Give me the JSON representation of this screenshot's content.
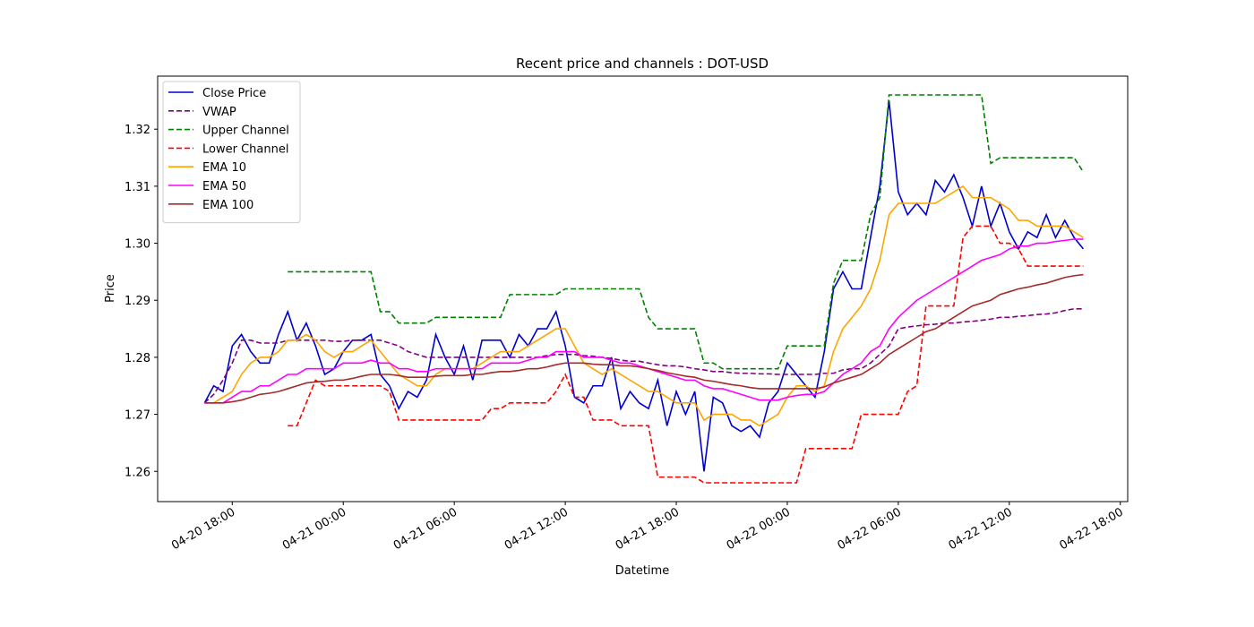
{
  "chart_data": {
    "type": "line",
    "title": "Recent price and channels : DOT-USD",
    "xlabel": "Datetime",
    "ylabel": "Price",
    "legend": "upper left",
    "grid": false,
    "x": [
      "04-20 16:30",
      "04-20 17:00",
      "04-20 17:30",
      "04-20 18:00",
      "04-20 18:30",
      "04-20 19:00",
      "04-20 19:30",
      "04-20 20:00",
      "04-20 20:30",
      "04-20 21:00",
      "04-20 21:30",
      "04-20 22:00",
      "04-20 22:30",
      "04-20 23:00",
      "04-20 23:30",
      "04-21 00:00",
      "04-21 00:30",
      "04-21 01:00",
      "04-21 01:30",
      "04-21 02:00",
      "04-21 02:30",
      "04-21 03:00",
      "04-21 03:30",
      "04-21 04:00",
      "04-21 04:30",
      "04-21 05:00",
      "04-21 05:30",
      "04-21 06:00",
      "04-21 06:30",
      "04-21 07:00",
      "04-21 07:30",
      "04-21 08:00",
      "04-21 08:30",
      "04-21 09:00",
      "04-21 09:30",
      "04-21 10:00",
      "04-21 10:30",
      "04-21 11:00",
      "04-21 11:30",
      "04-21 12:00",
      "04-21 12:30",
      "04-21 13:00",
      "04-21 13:30",
      "04-21 14:00",
      "04-21 14:30",
      "04-21 15:00",
      "04-21 15:30",
      "04-21 16:00",
      "04-21 16:30",
      "04-21 17:00",
      "04-21 17:30",
      "04-21 18:00",
      "04-21 18:30",
      "04-21 19:00",
      "04-21 19:30",
      "04-21 20:00",
      "04-21 20:30",
      "04-21 21:00",
      "04-21 21:30",
      "04-21 22:00",
      "04-21 22:30",
      "04-21 23:00",
      "04-21 23:30",
      "04-22 00:00",
      "04-22 00:30",
      "04-22 01:00",
      "04-22 01:30",
      "04-22 02:00",
      "04-22 02:30",
      "04-22 03:00",
      "04-22 03:30",
      "04-22 04:00",
      "04-22 04:30",
      "04-22 05:00",
      "04-22 05:30",
      "04-22 06:00",
      "04-22 06:30",
      "04-22 07:00",
      "04-22 07:30",
      "04-22 08:00",
      "04-22 08:30",
      "04-22 09:00",
      "04-22 09:30",
      "04-22 10:00",
      "04-22 10:30",
      "04-22 11:00",
      "04-22 11:30",
      "04-22 12:00",
      "04-22 12:30",
      "04-22 13:00",
      "04-22 13:30",
      "04-22 14:00",
      "04-22 14:30",
      "04-22 15:00",
      "04-22 15:30",
      "04-22 16:00"
    ],
    "xlim": [
      "04-20 13:58",
      "04-22 18:24"
    ],
    "xticks": [
      "04-20 18:00",
      "04-21 00:00",
      "04-21 06:00",
      "04-21 12:00",
      "04-21 18:00",
      "04-22 00:00",
      "04-22 06:00",
      "04-22 12:00",
      "04-22 18:00"
    ],
    "ylim": [
      1.2547,
      1.3293
    ],
    "yticks": [
      1.26,
      1.27,
      1.28,
      1.29,
      {
        "value": 1.3,
        "label": "1.30"
      },
      1.31,
      1.32
    ],
    "series": [
      {
        "name": "Close Price",
        "color": "#0000cd",
        "linestyle": "solid",
        "values": [
          1.272,
          1.275,
          1.274,
          1.282,
          1.284,
          1.281,
          1.279,
          1.279,
          1.284,
          1.288,
          1.283,
          1.286,
          1.282,
          1.277,
          1.278,
          1.281,
          1.283,
          1.283,
          1.284,
          1.277,
          1.275,
          1.271,
          1.274,
          1.273,
          1.276,
          1.284,
          1.28,
          1.277,
          1.282,
          1.276,
          1.283,
          1.283,
          1.283,
          1.28,
          1.284,
          1.282,
          1.285,
          1.285,
          1.288,
          1.282,
          1.273,
          1.272,
          1.275,
          1.275,
          1.28,
          1.271,
          1.274,
          1.272,
          1.271,
          1.276,
          1.268,
          1.274,
          1.27,
          1.274,
          1.26,
          1.273,
          1.272,
          1.268,
          1.267,
          1.268,
          1.266,
          1.272,
          1.274,
          1.279,
          1.277,
          1.275,
          1.273,
          1.281,
          1.292,
          1.295,
          1.292,
          1.292,
          1.301,
          1.31,
          1.325,
          1.309,
          1.305,
          1.307,
          1.305,
          1.311,
          1.309,
          1.312,
          1.308,
          1.303,
          1.31,
          1.303,
          1.307,
          1.302,
          1.299,
          1.302,
          1.301,
          1.305,
          1.301,
          1.304,
          1.301,
          1.299
        ]
      },
      {
        "name": "VWAP",
        "color": "#800080",
        "linestyle": "dashed",
        "values": [
          1.272,
          1.2735,
          1.276,
          1.279,
          1.283,
          1.283,
          1.2825,
          1.2825,
          1.2825,
          1.283,
          1.283,
          1.283,
          1.283,
          1.283,
          1.2828,
          1.2828,
          1.283,
          1.283,
          1.283,
          1.283,
          1.2825,
          1.282,
          1.281,
          1.2805,
          1.28,
          1.28,
          1.28,
          1.28,
          1.28,
          1.28,
          1.28,
          1.28,
          1.28,
          1.28,
          1.28,
          1.28,
          1.28,
          1.2803,
          1.2805,
          1.2805,
          1.2805,
          1.2803,
          1.2802,
          1.28,
          1.2798,
          1.2795,
          1.2793,
          1.2793,
          1.279,
          1.2787,
          1.2785,
          1.2785,
          1.2783,
          1.278,
          1.2778,
          1.2775,
          1.2775,
          1.2773,
          1.2772,
          1.2772,
          1.2771,
          1.2771,
          1.277,
          1.277,
          1.277,
          1.277,
          1.277,
          1.2772,
          1.2772,
          1.2778,
          1.278,
          1.278,
          1.279,
          1.2805,
          1.282,
          1.285,
          1.2853,
          1.2855,
          1.2857,
          1.2858,
          1.286,
          1.286,
          1.2862,
          1.2863,
          1.2865,
          1.2867,
          1.287,
          1.287,
          1.2872,
          1.2873,
          1.2875,
          1.2876,
          1.2878,
          1.2882,
          1.2885,
          1.2885
        ]
      },
      {
        "name": "Upper Channel",
        "color": "#008000",
        "linestyle": "dashed",
        "values": [
          null,
          null,
          null,
          null,
          null,
          null,
          null,
          null,
          null,
          1.295,
          1.295,
          1.295,
          1.295,
          1.295,
          1.295,
          1.295,
          1.295,
          1.295,
          1.295,
          1.288,
          1.288,
          1.286,
          1.286,
          1.286,
          1.286,
          1.287,
          1.287,
          1.287,
          1.287,
          1.287,
          1.287,
          1.287,
          1.287,
          1.291,
          1.291,
          1.291,
          1.291,
          1.291,
          1.291,
          1.292,
          1.292,
          1.292,
          1.292,
          1.292,
          1.292,
          1.292,
          1.292,
          1.292,
          1.287,
          1.285,
          1.285,
          1.285,
          1.285,
          1.285,
          1.279,
          1.279,
          1.278,
          1.278,
          1.278,
          1.278,
          1.278,
          1.278,
          1.278,
          1.282,
          1.282,
          1.282,
          1.282,
          1.282,
          1.293,
          1.297,
          1.297,
          1.297,
          1.305,
          1.308,
          1.326,
          1.326,
          1.326,
          1.326,
          1.326,
          1.326,
          1.326,
          1.326,
          1.326,
          1.326,
          1.326,
          1.314,
          1.315,
          1.315,
          1.315,
          1.315,
          1.315,
          1.315,
          1.315,
          1.315,
          1.315,
          1.3125
        ]
      },
      {
        "name": "Lower Channel",
        "color": "#ff0000",
        "linestyle": "dashed",
        "values": [
          null,
          null,
          null,
          null,
          null,
          null,
          null,
          null,
          null,
          1.268,
          1.268,
          1.272,
          1.276,
          1.275,
          1.275,
          1.275,
          1.275,
          1.275,
          1.275,
          1.275,
          1.274,
          1.269,
          1.269,
          1.269,
          1.269,
          1.269,
          1.269,
          1.269,
          1.269,
          1.269,
          1.269,
          1.271,
          1.271,
          1.272,
          1.272,
          1.272,
          1.272,
          1.272,
          1.274,
          1.277,
          1.273,
          1.273,
          1.269,
          1.269,
          1.269,
          1.268,
          1.268,
          1.268,
          1.268,
          1.259,
          1.259,
          1.259,
          1.259,
          1.259,
          1.258,
          1.258,
          1.258,
          1.258,
          1.258,
          1.258,
          1.258,
          1.258,
          1.258,
          1.258,
          1.258,
          1.264,
          1.264,
          1.264,
          1.264,
          1.264,
          1.264,
          1.27,
          1.27,
          1.27,
          1.27,
          1.27,
          1.274,
          1.275,
          1.289,
          1.289,
          1.289,
          1.289,
          1.301,
          1.303,
          1.303,
          1.303,
          1.3,
          1.3,
          1.299,
          1.296,
          1.296,
          1.296,
          1.296,
          1.296,
          1.296,
          1.296
        ]
      },
      {
        "name": "EMA 10",
        "color": "#ffa500",
        "linestyle": "solid",
        "values": [
          1.272,
          1.272,
          1.273,
          1.274,
          1.277,
          1.279,
          1.28,
          1.28,
          1.281,
          1.283,
          1.283,
          1.284,
          1.283,
          1.281,
          1.28,
          1.281,
          1.281,
          1.282,
          1.283,
          1.281,
          1.279,
          1.277,
          1.276,
          1.275,
          1.275,
          1.277,
          1.278,
          1.278,
          1.278,
          1.278,
          1.279,
          1.28,
          1.281,
          1.281,
          1.281,
          1.282,
          1.283,
          1.284,
          1.285,
          1.285,
          1.282,
          1.279,
          1.278,
          1.277,
          1.278,
          1.277,
          1.276,
          1.275,
          1.274,
          1.274,
          1.273,
          1.272,
          1.272,
          1.272,
          1.269,
          1.27,
          1.27,
          1.27,
          1.269,
          1.269,
          1.268,
          1.269,
          1.27,
          1.273,
          1.275,
          1.275,
          1.274,
          1.275,
          1.281,
          1.285,
          1.287,
          1.289,
          1.292,
          1.297,
          1.305,
          1.307,
          1.307,
          1.307,
          1.307,
          1.307,
          1.308,
          1.309,
          1.31,
          1.308,
          1.308,
          1.308,
          1.307,
          1.306,
          1.304,
          1.304,
          1.303,
          1.303,
          1.303,
          1.303,
          1.302,
          1.301
        ]
      },
      {
        "name": "EMA 50",
        "color": "#ff00ff",
        "linestyle": "solid",
        "values": [
          1.272,
          1.272,
          1.272,
          1.273,
          1.274,
          1.274,
          1.275,
          1.275,
          1.276,
          1.277,
          1.277,
          1.278,
          1.278,
          1.278,
          1.278,
          1.279,
          1.279,
          1.279,
          1.2795,
          1.279,
          1.279,
          1.278,
          1.278,
          1.2775,
          1.2775,
          1.278,
          1.278,
          1.278,
          1.278,
          1.278,
          1.278,
          1.279,
          1.279,
          1.279,
          1.279,
          1.2795,
          1.28,
          1.28,
          1.281,
          1.281,
          1.281,
          1.28,
          1.28,
          1.28,
          1.2795,
          1.279,
          1.279,
          1.2785,
          1.278,
          1.2775,
          1.277,
          1.2765,
          1.276,
          1.276,
          1.275,
          1.2745,
          1.2745,
          1.274,
          1.2735,
          1.273,
          1.2725,
          1.2725,
          1.2725,
          1.273,
          1.2733,
          1.2735,
          1.2735,
          1.274,
          1.2755,
          1.277,
          1.278,
          1.279,
          1.281,
          1.282,
          1.285,
          1.287,
          1.2885,
          1.29,
          1.291,
          1.292,
          1.293,
          1.294,
          1.295,
          1.296,
          1.297,
          1.2975,
          1.298,
          1.299,
          1.2995,
          1.2995,
          1.3,
          1.3,
          1.3003,
          1.3005,
          1.3007,
          1.3007
        ]
      },
      {
        "name": "EMA 100",
        "color": "#a52a2a",
        "linestyle": "solid",
        "values": [
          1.272,
          1.272,
          1.272,
          1.2722,
          1.2725,
          1.273,
          1.2735,
          1.2737,
          1.274,
          1.2745,
          1.275,
          1.2755,
          1.2757,
          1.2758,
          1.276,
          1.276,
          1.2763,
          1.2767,
          1.277,
          1.277,
          1.277,
          1.2768,
          1.2765,
          1.2765,
          1.2765,
          1.2767,
          1.2768,
          1.2768,
          1.2768,
          1.277,
          1.277,
          1.2773,
          1.2775,
          1.2775,
          1.2777,
          1.278,
          1.278,
          1.2783,
          1.2787,
          1.279,
          1.279,
          1.279,
          1.2788,
          1.2787,
          1.2787,
          1.2785,
          1.2785,
          1.2783,
          1.278,
          1.2777,
          1.2773,
          1.277,
          1.2767,
          1.2765,
          1.276,
          1.2758,
          1.2755,
          1.2752,
          1.275,
          1.2747,
          1.2745,
          1.2745,
          1.2745,
          1.2745,
          1.2745,
          1.2745,
          1.2745,
          1.2748,
          1.2755,
          1.276,
          1.2765,
          1.277,
          1.278,
          1.279,
          1.2805,
          1.2815,
          1.2825,
          1.2835,
          1.2845,
          1.285,
          1.286,
          1.287,
          1.288,
          1.289,
          1.2895,
          1.29,
          1.291,
          1.2915,
          1.292,
          1.2923,
          1.2927,
          1.293,
          1.2935,
          1.294,
          1.2943,
          1.2945
        ]
      }
    ]
  }
}
